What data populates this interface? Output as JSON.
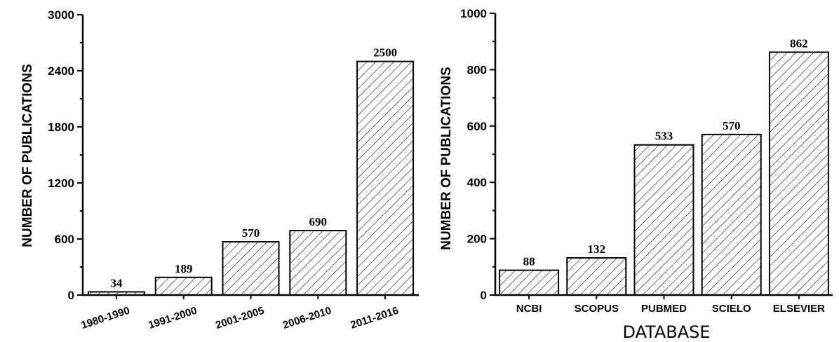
{
  "chart_data": [
    {
      "type": "bar",
      "title": "",
      "xlabel": "",
      "ylabel": "NUMBER OF PUBLICATIONS",
      "categories": [
        "1980-1990",
        "1991-2000",
        "2001-2005",
        "2006-2010",
        "2011-2016"
      ],
      "values": [
        34,
        189,
        570,
        690,
        2500
      ],
      "data_labels": [
        "34",
        "189",
        "570",
        "690",
        "2500"
      ],
      "ylim": [
        0,
        3000
      ],
      "yticks": [
        "0",
        "600",
        "1200",
        "1800",
        "2400",
        "3000"
      ],
      "ytick_values": [
        0,
        600,
        1200,
        1800,
        2400,
        3000
      ],
      "bar_fill": "diagonal-hatch",
      "x_tick_rotation": "angled",
      "grid": false
    },
    {
      "type": "bar",
      "title": "",
      "xlabel": "DATABASE",
      "ylabel": "NUMBER OF PUBLICATIONS",
      "categories": [
        "NCBI",
        "SCOPUS",
        "PUBMED",
        "SCIELO",
        "ELSEVIER"
      ],
      "values": [
        88,
        132,
        533,
        570,
        862
      ],
      "data_labels": [
        "88",
        "132",
        "533",
        "570",
        "862"
      ],
      "ylim": [
        0,
        1000
      ],
      "yticks": [
        "0",
        "200",
        "400",
        "600",
        "800",
        "1000"
      ],
      "ytick_values": [
        0,
        200,
        400,
        600,
        800,
        1000
      ],
      "bar_fill": "diagonal-hatch",
      "x_tick_rotation": "none",
      "grid": false
    }
  ]
}
